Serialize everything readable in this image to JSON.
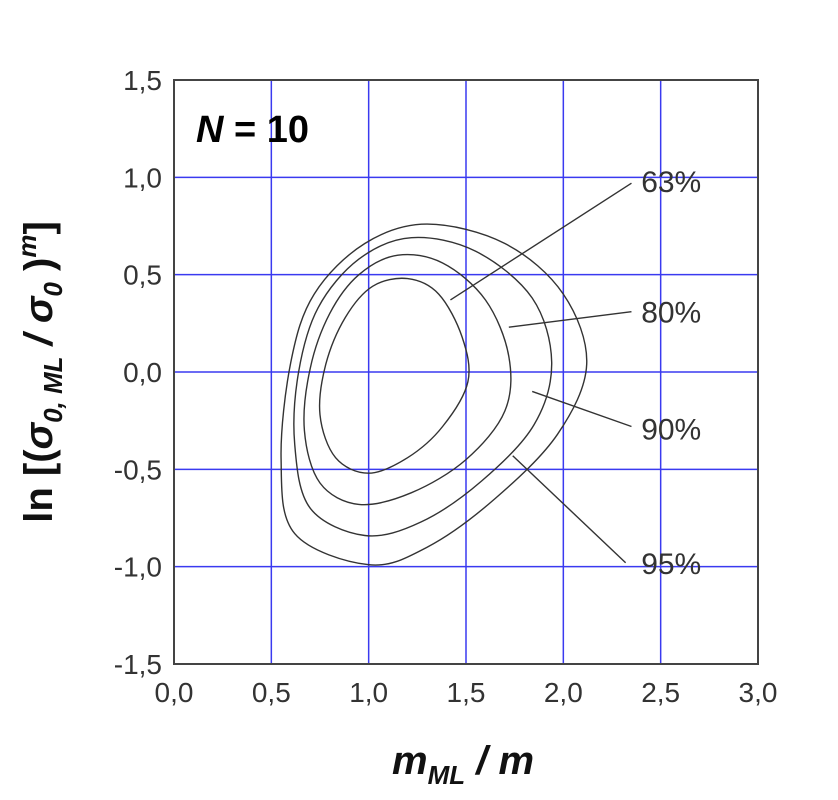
{
  "chart_data": {
    "type": "contour",
    "xlim": [
      0,
      3
    ],
    "ylim": [
      -1.5,
      1.5
    ],
    "x_ticks": [
      0,
      0.5,
      1,
      1.5,
      2,
      2.5,
      3
    ],
    "y_ticks": [
      -1.5,
      -1,
      -0.5,
      0,
      0.5,
      1,
      1.5
    ],
    "x_tick_labels": [
      "0,0",
      "0,5",
      "1,0",
      "1,5",
      "2,0",
      "2,5",
      "3,0"
    ],
    "y_tick_labels": [
      "-1,5",
      "-1,0",
      "-0,5",
      "0,0",
      "0,5",
      "1,0",
      "1,5"
    ],
    "grid": true,
    "grid_color": "#3a3af0",
    "contour_color": "#333333",
    "xlabel": {
      "var": "m",
      "sub": "ML",
      "rest": " / m"
    },
    "ylabel": {
      "prefix": "ln [(",
      "sigma": "σ",
      "sub1": "0, ML",
      "mid": " / ",
      "sub2": "0",
      "close": " )",
      "sup": "m",
      "end": "]"
    },
    "annotation": {
      "var": "N",
      "rest": " = 10"
    },
    "contours": [
      {
        "label": "63%",
        "points": [
          [
            1.0,
            -0.52
          ],
          [
            1.2,
            -0.44
          ],
          [
            1.38,
            -0.28
          ],
          [
            1.51,
            -0.05
          ],
          [
            1.48,
            0.18
          ],
          [
            1.36,
            0.4
          ],
          [
            1.2,
            0.48
          ],
          [
            1.02,
            0.44
          ],
          [
            0.88,
            0.28
          ],
          [
            0.78,
            0.04
          ],
          [
            0.75,
            -0.22
          ],
          [
            0.83,
            -0.44
          ]
        ],
        "leader": {
          "from": [
            1.42,
            0.37
          ],
          "to": [
            2.35,
            0.97
          ]
        },
        "label_pos": [
          2.4,
          0.98
        ]
      },
      {
        "label": "80%",
        "points": [
          [
            0.95,
            -0.68
          ],
          [
            1.22,
            -0.62
          ],
          [
            1.5,
            -0.45
          ],
          [
            1.7,
            -0.2
          ],
          [
            1.72,
            0.08
          ],
          [
            1.6,
            0.37
          ],
          [
            1.38,
            0.56
          ],
          [
            1.15,
            0.6
          ],
          [
            0.95,
            0.5
          ],
          [
            0.8,
            0.3
          ],
          [
            0.7,
            0.02
          ],
          [
            0.67,
            -0.3
          ],
          [
            0.75,
            -0.57
          ]
        ],
        "leader": {
          "from": [
            1.72,
            0.23
          ],
          "to": [
            2.35,
            0.31
          ]
        },
        "label_pos": [
          2.4,
          0.31
        ]
      },
      {
        "label": "90%",
        "points": [
          [
            0.98,
            -0.84
          ],
          [
            1.27,
            -0.77
          ],
          [
            1.58,
            -0.56
          ],
          [
            1.85,
            -0.27
          ],
          [
            1.94,
            0.05
          ],
          [
            1.84,
            0.38
          ],
          [
            1.55,
            0.62
          ],
          [
            1.22,
            0.69
          ],
          [
            0.95,
            0.58
          ],
          [
            0.74,
            0.33
          ],
          [
            0.64,
            0.0
          ],
          [
            0.62,
            -0.37
          ],
          [
            0.7,
            -0.7
          ]
        ],
        "leader": {
          "from": [
            1.84,
            -0.1
          ],
          "to": [
            2.35,
            -0.28
          ]
        },
        "label_pos": [
          2.4,
          -0.29
        ]
      },
      {
        "label": "95%",
        "points": [
          [
            1.0,
            -0.99
          ],
          [
            1.3,
            -0.9
          ],
          [
            1.65,
            -0.65
          ],
          [
            1.97,
            -0.32
          ],
          [
            2.12,
            0.04
          ],
          [
            2.0,
            0.4
          ],
          [
            1.7,
            0.66
          ],
          [
            1.3,
            0.76
          ],
          [
            0.98,
            0.66
          ],
          [
            0.72,
            0.4
          ],
          [
            0.6,
            0.05
          ],
          [
            0.55,
            -0.45
          ],
          [
            0.62,
            -0.83
          ]
        ],
        "leader": {
          "from": [
            1.74,
            -0.43
          ],
          "to": [
            2.32,
            -0.98
          ]
        },
        "label_pos": [
          2.4,
          -0.98
        ]
      }
    ]
  }
}
